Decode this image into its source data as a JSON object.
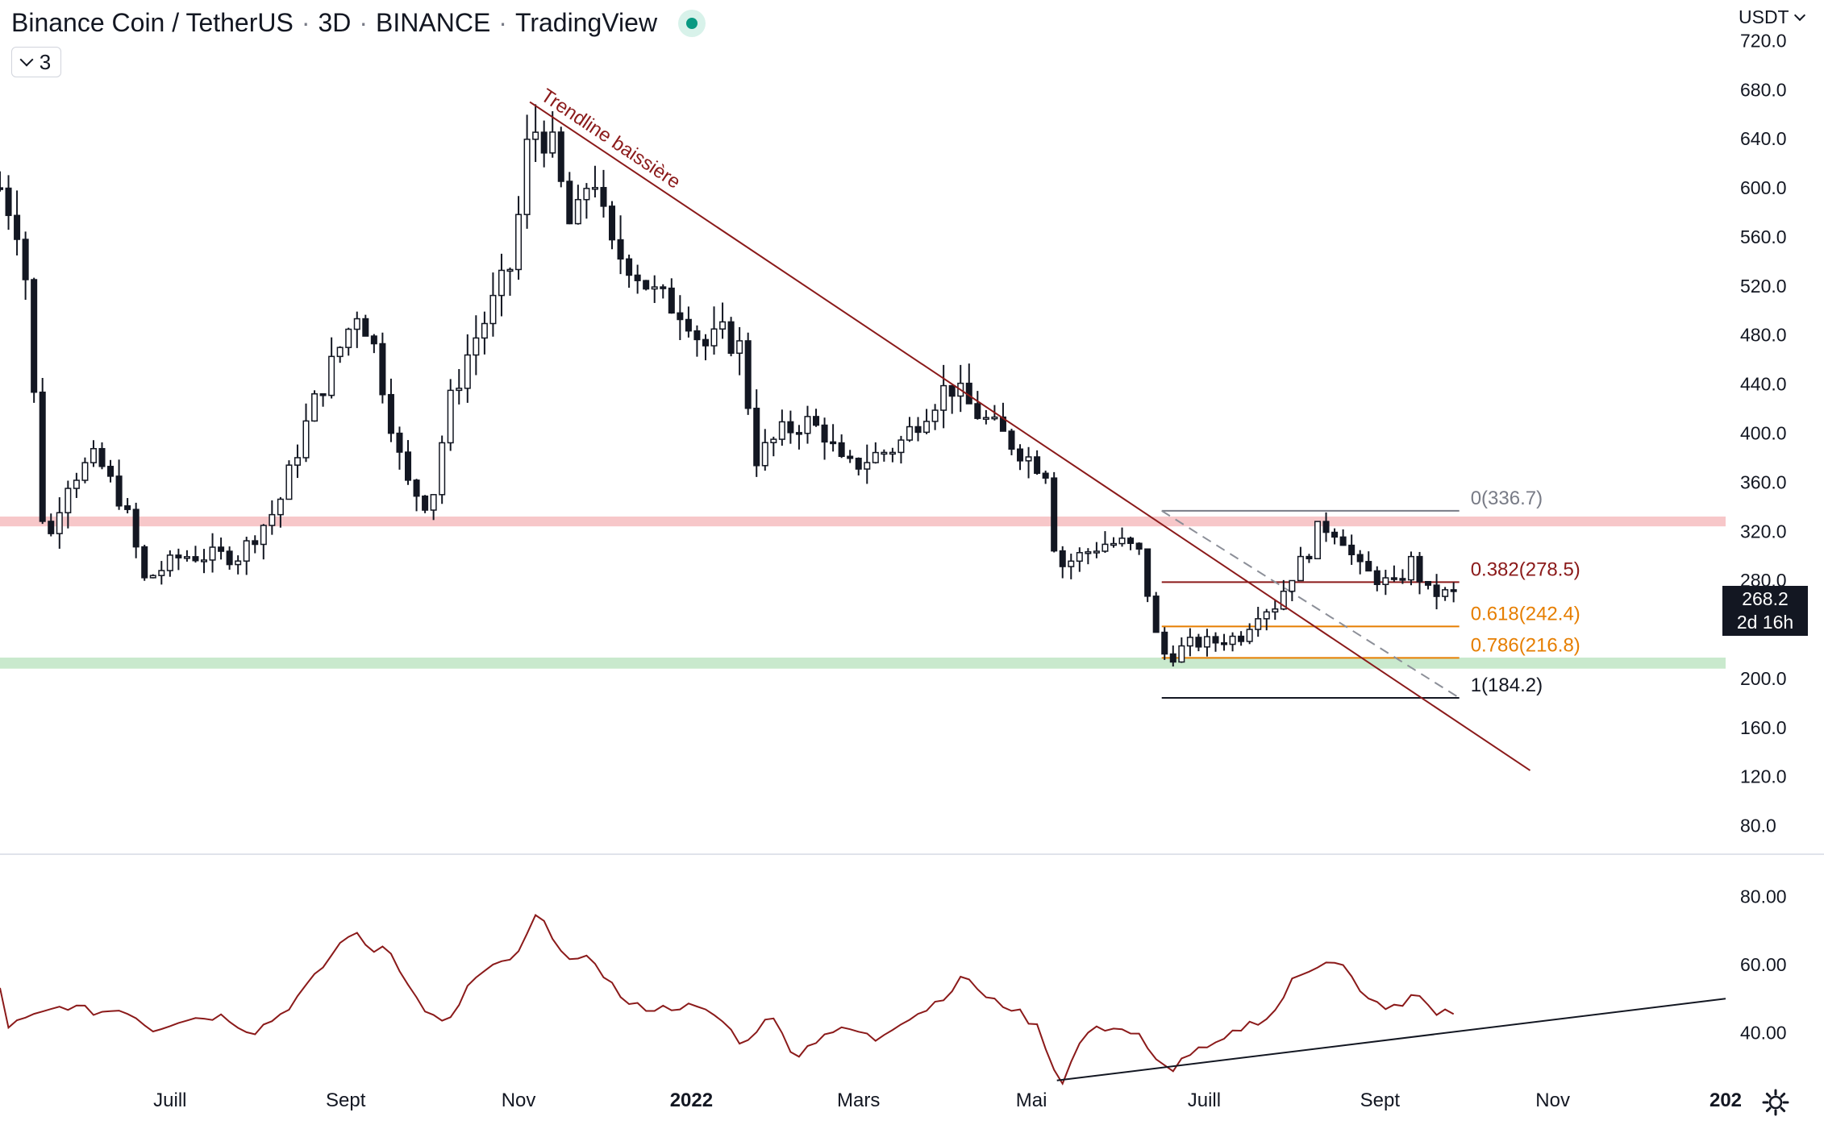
{
  "header": {
    "symbol": "Binance Coin / TetherUS",
    "interval": "3D",
    "exchange": "BINANCE",
    "source": "TradingView",
    "indicator_count": "3"
  },
  "price_axis": {
    "currency": "USDT",
    "last_price": "268.2",
    "countdown": "2d 16h"
  },
  "colors": {
    "candle": "#131722",
    "trendline": "#8b1a1a",
    "resistance_zone": "#f7c7c9",
    "support_zone": "#c9e9cd",
    "rsi_line": "#8b1a1a",
    "fib_0": "#787b86",
    "fib_0382": "#8b1a1a",
    "fib_0618": "#e67e00",
    "fib_0786": "#e67e00",
    "fib_1": "#131722"
  },
  "chart_data": [
    {
      "type": "candlestick",
      "title": "Binance Coin / TetherUS",
      "x_range": [
        "2021-05-02",
        "2023-01-01"
      ],
      "ylim": [
        60,
        740
      ],
      "y_ticks": [
        80,
        120,
        160,
        200,
        240,
        280,
        320,
        360,
        400,
        440,
        480,
        520,
        560,
        600,
        640,
        680,
        720
      ],
      "y_tick_labels": [
        "80.0",
        "120.0",
        "160.0",
        "200.0",
        "240.0",
        "280.0",
        "320.0",
        "360.0",
        "400.0",
        "440.0",
        "480.0",
        "520.0",
        "560.0",
        "600.0",
        "640.0",
        "680.0",
        "720.0"
      ],
      "x_ticks": [
        {
          "label": "Juill",
          "date": "2021-07-01"
        },
        {
          "label": "Sept",
          "date": "2021-09-01"
        },
        {
          "label": "Nov",
          "date": "2021-11-01"
        },
        {
          "label": "2022",
          "date": "2022-01-01",
          "bold": true
        },
        {
          "label": "Mars",
          "date": "2022-03-01"
        },
        {
          "label": "Mai",
          "date": "2022-05-01"
        },
        {
          "label": "Juill",
          "date": "2022-07-01"
        },
        {
          "label": "Sept",
          "date": "2022-09-01"
        },
        {
          "label": "Nov",
          "date": "2022-11-01"
        },
        {
          "label": "202",
          "date": "2023-01-01",
          "bold": true
        }
      ],
      "close_anchors": [
        [
          "2021-05-02",
          600
        ],
        [
          "2021-05-10",
          560
        ],
        [
          "2021-05-18",
          300
        ],
        [
          "2021-05-25",
          360
        ],
        [
          "2021-06-05",
          380
        ],
        [
          "2021-06-15",
          340
        ],
        [
          "2021-06-22",
          280
        ],
        [
          "2021-07-05",
          300
        ],
        [
          "2021-07-25",
          300
        ],
        [
          "2021-08-08",
          340
        ],
        [
          "2021-08-20",
          420
        ],
        [
          "2021-09-05",
          500
        ],
        [
          "2021-09-10",
          480
        ],
        [
          "2021-09-22",
          360
        ],
        [
          "2021-10-01",
          340
        ],
        [
          "2021-10-07",
          420
        ],
        [
          "2021-10-15",
          470
        ],
        [
          "2021-10-22",
          500
        ],
        [
          "2021-10-30",
          540
        ],
        [
          "2021-11-05",
          650
        ],
        [
          "2021-11-12",
          640
        ],
        [
          "2021-11-20",
          560
        ],
        [
          "2021-11-27",
          620
        ],
        [
          "2021-12-03",
          550
        ],
        [
          "2021-12-10",
          540
        ],
        [
          "2021-12-20",
          510
        ],
        [
          "2021-12-30",
          500
        ],
        [
          "2022-01-05",
          470
        ],
        [
          "2022-01-12",
          480
        ],
        [
          "2022-01-18",
          470
        ],
        [
          "2022-01-24",
          380
        ],
        [
          "2022-02-02",
          400
        ],
        [
          "2022-02-10",
          410
        ],
        [
          "2022-02-17",
          400
        ],
        [
          "2022-02-24",
          370
        ],
        [
          "2022-03-05",
          380
        ],
        [
          "2022-03-15",
          390
        ],
        [
          "2022-03-25",
          420
        ],
        [
          "2022-04-02",
          440
        ],
        [
          "2022-04-10",
          420
        ],
        [
          "2022-04-20",
          400
        ],
        [
          "2022-04-30",
          380
        ],
        [
          "2022-05-06",
          370
        ],
        [
          "2022-05-10",
          290
        ],
        [
          "2022-05-18",
          300
        ],
        [
          "2022-05-26",
          310
        ],
        [
          "2022-06-03",
          310
        ],
        [
          "2022-06-09",
          300
        ],
        [
          "2022-06-13",
          240
        ],
        [
          "2022-06-18",
          215
        ],
        [
          "2022-06-25",
          228
        ],
        [
          "2022-07-05",
          230
        ],
        [
          "2022-07-14",
          235
        ],
        [
          "2022-07-20",
          255
        ],
        [
          "2022-07-26",
          260
        ],
        [
          "2022-08-01",
          285
        ],
        [
          "2022-08-06",
          300
        ],
        [
          "2022-08-11",
          325
        ],
        [
          "2022-08-18",
          320
        ],
        [
          "2022-08-24",
          290
        ],
        [
          "2022-08-30",
          283
        ],
        [
          "2022-09-06",
          275
        ],
        [
          "2022-09-12",
          295
        ],
        [
          "2022-09-18",
          270
        ],
        [
          "2022-09-27",
          268.2
        ]
      ],
      "resistance_zone": [
        324,
        332
      ],
      "support_zone": [
        208,
        217
      ],
      "trendline": {
        "label": "Trendline baissière",
        "start": {
          "date": "2021-11-05",
          "price": 670
        },
        "end": {
          "date": "2022-10-24",
          "price": 125
        }
      },
      "fib_retracement": {
        "start_date": "2022-06-16",
        "end_date": "2022-09-29",
        "levels": [
          {
            "ratio": "0",
            "price": 336.7,
            "label": "0(336.7)"
          },
          {
            "ratio": "0.382",
            "price": 278.5,
            "label": "0.382(278.5)"
          },
          {
            "ratio": "0.618",
            "price": 242.4,
            "label": "0.618(242.4)"
          },
          {
            "ratio": "0.786",
            "price": 216.8,
            "label": "0.786(216.8)"
          },
          {
            "ratio": "1",
            "price": 184.2,
            "label": "1(184.2)"
          }
        ],
        "dashed_from": {
          "date": "2022-06-16",
          "price": 336.7
        },
        "dashed_to": {
          "date": "2022-09-29",
          "price": 184.2
        }
      }
    },
    {
      "type": "line",
      "title": "",
      "ylim": [
        25,
        90
      ],
      "y_ticks": [
        40,
        60,
        80
      ],
      "y_tick_labels": [
        "40.00",
        "60.00",
        "80.00"
      ],
      "series": [
        {
          "anchors": [
            [
              "2021-05-02",
              53
            ],
            [
              "2021-05-05",
              42
            ],
            [
              "2021-05-15",
              45
            ],
            [
              "2021-05-25",
              48
            ],
            [
              "2021-06-05",
              46
            ],
            [
              "2021-06-15",
              47
            ],
            [
              "2021-06-25",
              41
            ],
            [
              "2021-07-05",
              44
            ],
            [
              "2021-07-20",
              45
            ],
            [
              "2021-07-30",
              40
            ],
            [
              "2021-08-10",
              46
            ],
            [
              "2021-08-20",
              55
            ],
            [
              "2021-08-30",
              66
            ],
            [
              "2021-09-03",
              70
            ],
            [
              "2021-09-10",
              64
            ],
            [
              "2021-09-16",
              66
            ],
            [
              "2021-09-24",
              52
            ],
            [
              "2021-10-01",
              45
            ],
            [
              "2021-10-07",
              42
            ],
            [
              "2021-10-15",
              55
            ],
            [
              "2021-10-25",
              60
            ],
            [
              "2021-11-01",
              63
            ],
            [
              "2021-11-07",
              74
            ],
            [
              "2021-11-12",
              70
            ],
            [
              "2021-11-20",
              60
            ],
            [
              "2021-11-27",
              62
            ],
            [
              "2021-12-03",
              55
            ],
            [
              "2021-12-10",
              48
            ],
            [
              "2021-12-20",
              47
            ],
            [
              "2021-12-30",
              48
            ],
            [
              "2022-01-10",
              45
            ],
            [
              "2022-01-20",
              36
            ],
            [
              "2022-01-28",
              46
            ],
            [
              "2022-02-07",
              33
            ],
            [
              "2022-02-17",
              40
            ],
            [
              "2022-02-27",
              41
            ],
            [
              "2022-03-07",
              38
            ],
            [
              "2022-03-15",
              43
            ],
            [
              "2022-03-25",
              47
            ],
            [
              "2022-04-02",
              52
            ],
            [
              "2022-04-08",
              57
            ],
            [
              "2022-04-15",
              50
            ],
            [
              "2022-04-25",
              47
            ],
            [
              "2022-05-04",
              41
            ],
            [
              "2022-05-10",
              27
            ],
            [
              "2022-05-12",
              26
            ],
            [
              "2022-05-20",
              40
            ],
            [
              "2022-05-30",
              42
            ],
            [
              "2022-06-08",
              39
            ],
            [
              "2022-06-13",
              32
            ],
            [
              "2022-06-19",
              29
            ],
            [
              "2022-06-26",
              34
            ],
            [
              "2022-07-05",
              36
            ],
            [
              "2022-07-15",
              42
            ],
            [
              "2022-07-25",
              45
            ],
            [
              "2022-08-01",
              55
            ],
            [
              "2022-08-08",
              59
            ],
            [
              "2022-08-14",
              62
            ],
            [
              "2022-08-20",
              59
            ],
            [
              "2022-08-26",
              50
            ],
            [
              "2022-09-02",
              48
            ],
            [
              "2022-09-08",
              47
            ],
            [
              "2022-09-14",
              52
            ],
            [
              "2022-09-20",
              46
            ],
            [
              "2022-09-27",
              46
            ]
          ]
        }
      ],
      "trendline": {
        "start": {
          "date": "2022-05-10",
          "value": 26
        },
        "end": {
          "date": "2023-01-01",
          "value": 50
        }
      }
    }
  ]
}
